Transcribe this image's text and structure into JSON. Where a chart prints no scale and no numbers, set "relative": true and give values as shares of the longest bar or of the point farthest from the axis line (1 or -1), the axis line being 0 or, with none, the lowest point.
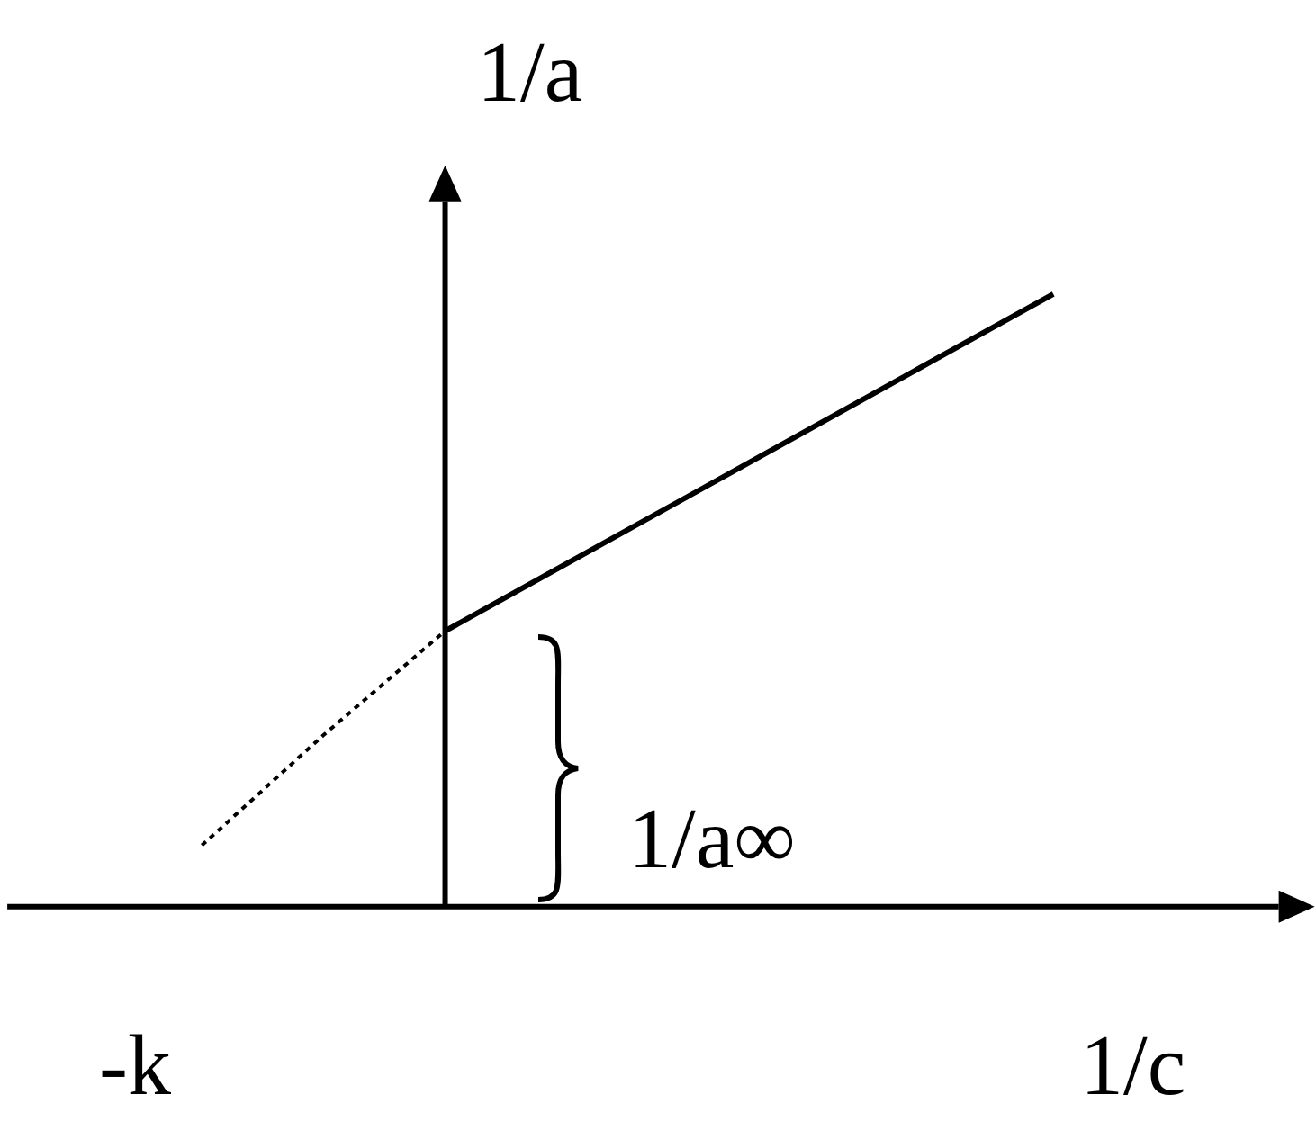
{
  "chart_data": {
    "type": "line",
    "relative": true,
    "xlabel": "1/c",
    "ylabel": "1/a",
    "categories": [
      null,
      null,
      null,
      null,
      null,
      null,
      null,
      null
    ],
    "series": [
      {
        "color": "#000000",
        "line_style": "dotted",
        "values": [
          0.1,
          0.28,
          0.45,
          null,
          null,
          null,
          null,
          null
        ]
      },
      {
        "color": "#000000",
        "line_style": "solid",
        "values": [
          null,
          null,
          0.45,
          0.56,
          0.67,
          0.78,
          0.89,
          1
        ]
      }
    ],
    "annotations": [
      "-k",
      "1/a∞"
    ],
    "marker": "none"
  }
}
